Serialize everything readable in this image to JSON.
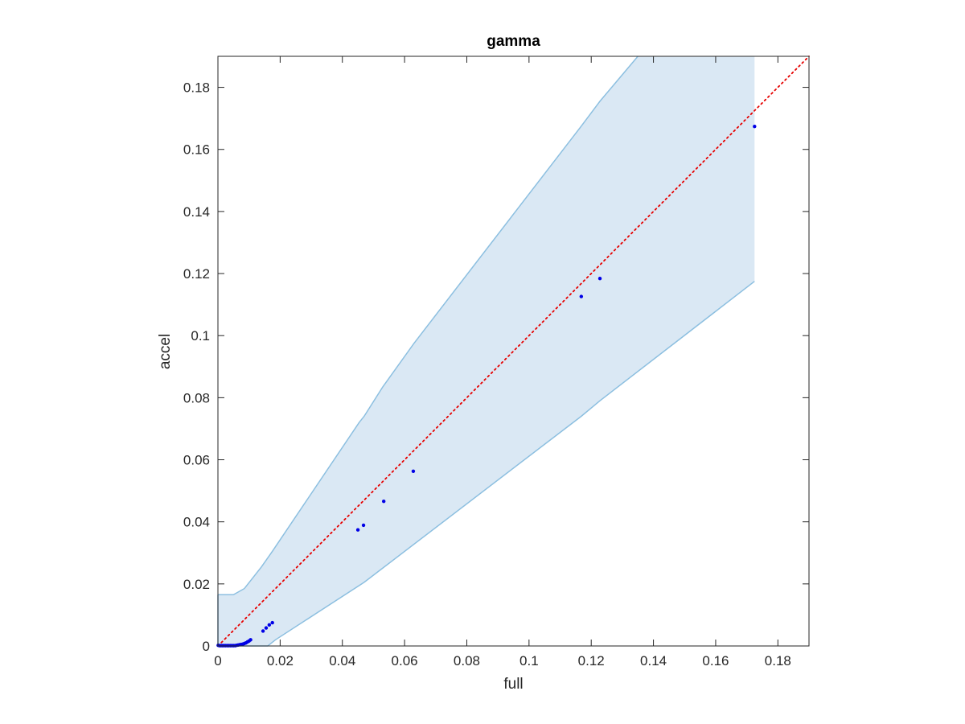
{
  "colors": {
    "band_fill": "#dae8f4",
    "band_edge": "#8cbfe0",
    "points": "#0000e6",
    "reference_line": "#e60000",
    "axes": "#262626"
  },
  "chart_data": {
    "type": "scatter",
    "title": "gamma",
    "xlabel": "full",
    "ylabel": "accel",
    "xlim": [
      0,
      0.19
    ],
    "ylim": [
      0,
      0.19
    ],
    "xticks": [
      0,
      0.02,
      0.04,
      0.06,
      0.08,
      0.1,
      0.12,
      0.14,
      0.16,
      0.18
    ],
    "yticks": [
      0,
      0.02,
      0.04,
      0.06,
      0.08,
      0.1,
      0.12,
      0.14,
      0.16,
      0.18
    ],
    "xtick_labels": [
      "0",
      "0.02",
      "0.04",
      "0.06",
      "0.08",
      "0.1",
      "0.12",
      "0.14",
      "0.16",
      "0.18"
    ],
    "ytick_labels": [
      "0",
      "0.02",
      "0.04",
      "0.06",
      "0.08",
      "0.1",
      "0.12",
      "0.14",
      "0.16",
      "0.18"
    ],
    "grid": false,
    "box": true,
    "points": {
      "x": [
        0.0001,
        0.0005,
        0.001,
        0.0015,
        0.002,
        0.0025,
        0.003,
        0.0035,
        0.004,
        0.0045,
        0.005,
        0.0055,
        0.006,
        0.0065,
        0.007,
        0.0075,
        0.008,
        0.0085,
        0.009,
        0.0095,
        0.01,
        0.0105,
        0.0145,
        0.0155,
        0.0165,
        0.0175,
        0.045,
        0.0468,
        0.0533,
        0.0628,
        0.1168,
        0.1228,
        0.1725
      ],
      "y": [
        0.0002,
        0.0001,
        0.0001,
        0.0001,
        0.0001,
        0.0001,
        0.0001,
        0.0001,
        0.0001,
        0.0001,
        0.0001,
        0.0001,
        0.0002,
        0.0003,
        0.0004,
        0.0005,
        0.0006,
        0.0008,
        0.001,
        0.0013,
        0.0016,
        0.002,
        0.0048,
        0.0058,
        0.0068,
        0.0075,
        0.0374,
        0.0389,
        0.0466,
        0.0563,
        0.1126,
        0.1184,
        0.1674
      ]
    },
    "reference_line": {
      "x": [
        0,
        0.19
      ],
      "y": [
        0,
        0.19
      ],
      "style": "dotted"
    },
    "band": {
      "upper": [
        [
          0,
          0.0165
        ],
        [
          0.005,
          0.0165
        ],
        [
          0.0085,
          0.0185
        ],
        [
          0.014,
          0.0255
        ],
        [
          0.0175,
          0.0305
        ],
        [
          0.0454,
          0.072
        ],
        [
          0.047,
          0.074
        ],
        [
          0.053,
          0.0835
        ],
        [
          0.063,
          0.0975
        ],
        [
          0.1168,
          0.1675
        ],
        [
          0.1228,
          0.1755
        ],
        [
          0.135,
          0.19
        ],
        [
          0.1725,
          0.19
        ]
      ],
      "lower": [
        [
          0,
          0
        ],
        [
          0.016,
          0
        ],
        [
          0.0185,
          0.002
        ],
        [
          0.047,
          0.0205
        ],
        [
          0.1168,
          0.074
        ],
        [
          0.1228,
          0.079
        ],
        [
          0.1725,
          0.1175
        ]
      ]
    }
  }
}
